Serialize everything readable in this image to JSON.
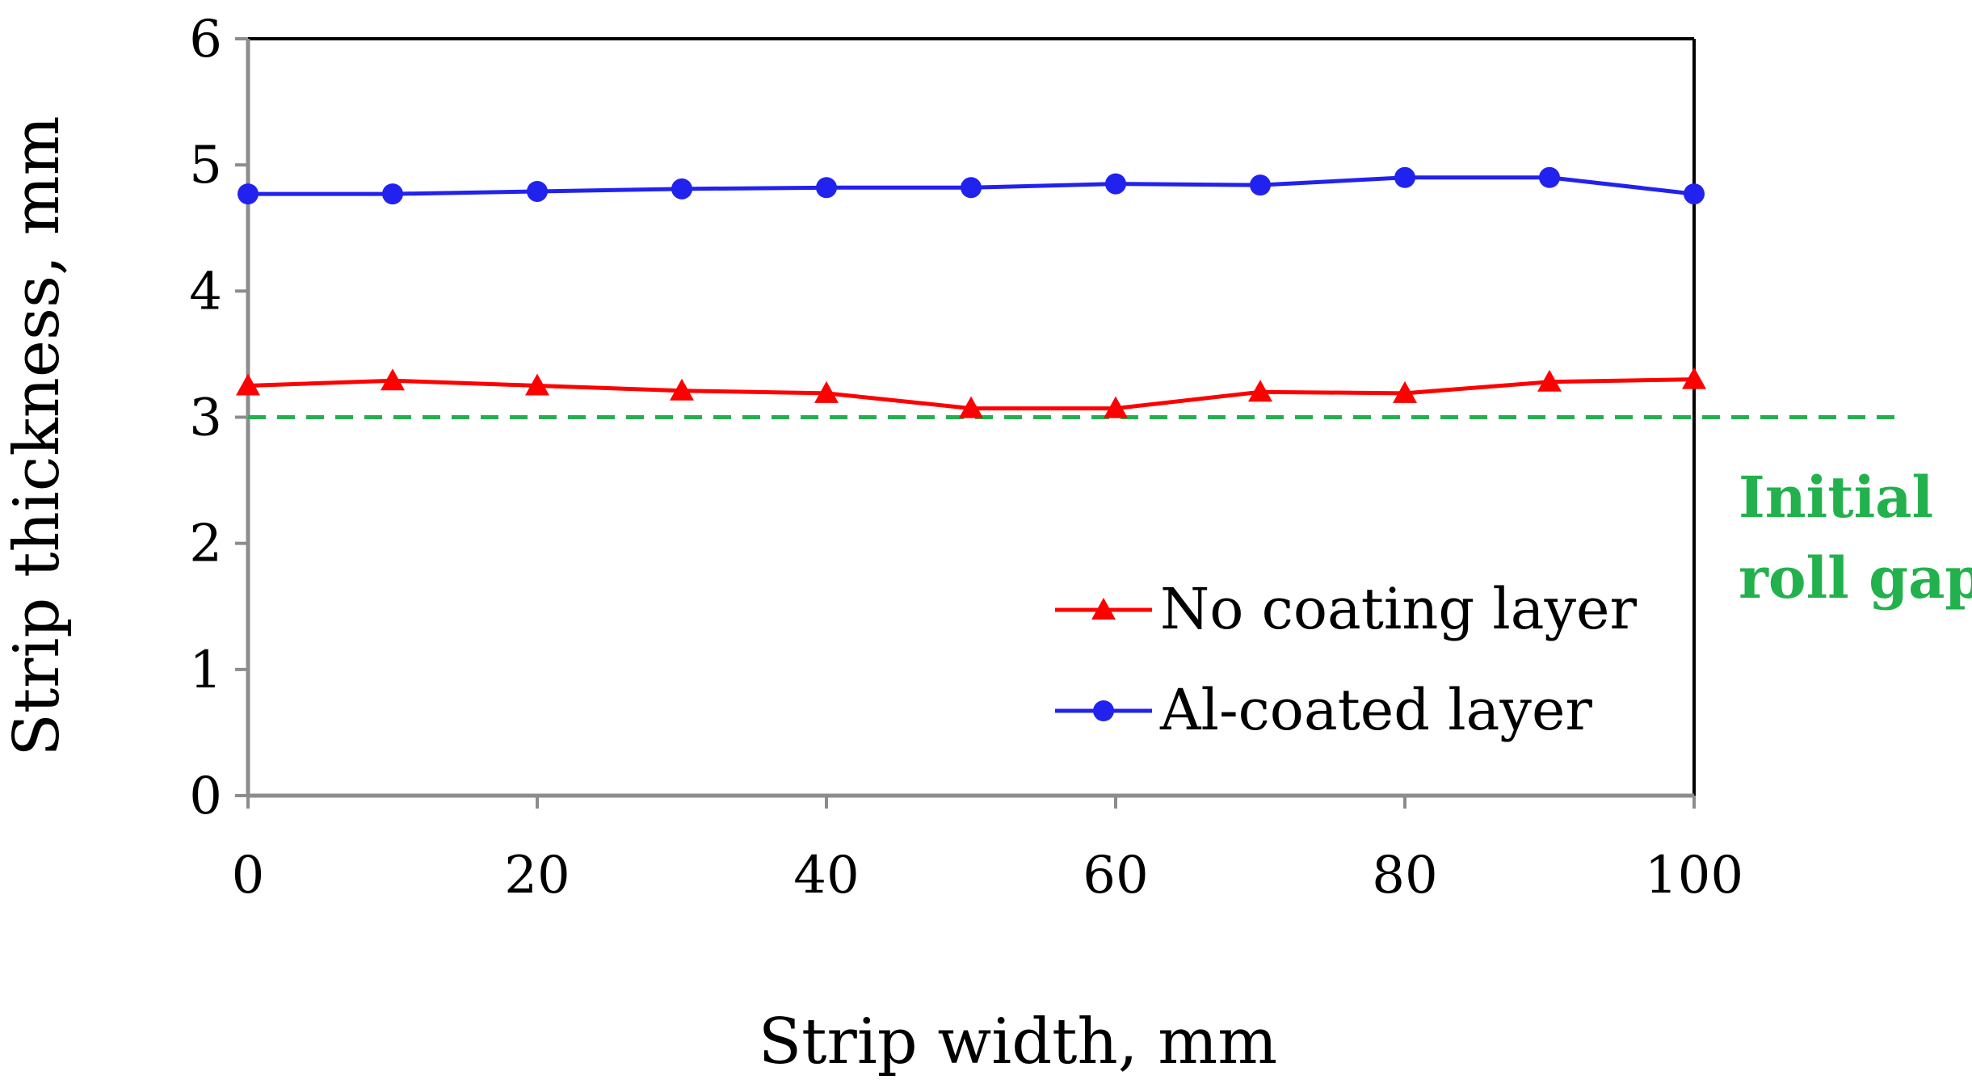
{
  "chart_data": {
    "type": "line",
    "title": "",
    "xlabel": "Strip width, mm",
    "ylabel": "Strip thickness, mm",
    "xlim": [
      0,
      100
    ],
    "ylim": [
      0,
      6
    ],
    "xticks": [
      0,
      20,
      40,
      60,
      80,
      100
    ],
    "xtick_labels": [
      "0",
      "20",
      "40",
      "60",
      "80",
      "100"
    ],
    "yticks": [
      0,
      1,
      2,
      3,
      4,
      5,
      6
    ],
    "ytick_labels": [
      "0",
      "1",
      "2",
      "3",
      "4",
      "5",
      "6"
    ],
    "grid": false,
    "x": [
      0,
      10,
      20,
      30,
      40,
      50,
      60,
      70,
      80,
      90,
      100
    ],
    "series": [
      {
        "name": "No coating layer",
        "marker": "triangle",
        "color": "#ff0000",
        "values": [
          3.25,
          3.29,
          3.25,
          3.21,
          3.19,
          3.07,
          3.07,
          3.2,
          3.19,
          3.28,
          3.3
        ]
      },
      {
        "name": "Al-coated layer",
        "marker": "circle",
        "color": "#2222ee",
        "values": [
          4.77,
          4.77,
          4.79,
          4.81,
          4.82,
          4.82,
          4.85,
          4.84,
          4.9,
          4.9,
          4.77
        ]
      }
    ],
    "reference_line": {
      "y": 3,
      "x_end": 114,
      "style": "dashed",
      "color": "#22b14c",
      "label_lines": [
        "Initial",
        "roll gap"
      ]
    },
    "legend_position": "bottom-right"
  }
}
